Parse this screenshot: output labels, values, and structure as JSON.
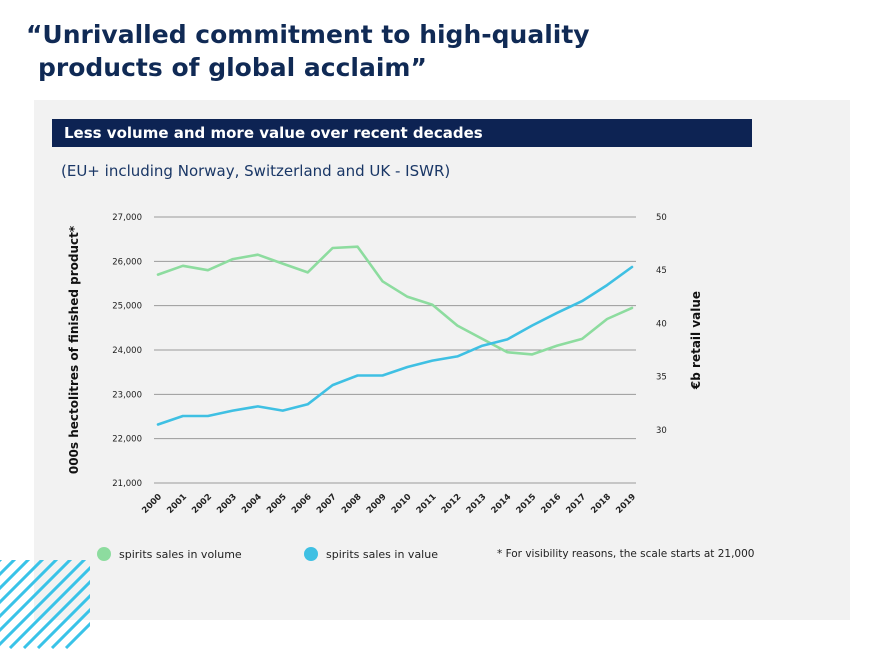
{
  "headline": {
    "line1": "“Unrivalled commitment to high-quality",
    "line2": "products of global acclaim”"
  },
  "banner_title": "Less volume and more value over recent decades",
  "subtitle": "(EU+ including Norway, Switzerland and UK - ISWR)",
  "footnote": "* For visibility reasons, the scale starts at 21,000",
  "colors": {
    "navy": "#0d2353",
    "volume": "#8ddc9f",
    "value": "#3fc0e3",
    "grid": "#9a9a9a",
    "decor": "#39c3e8"
  },
  "chart_data": {
    "type": "line",
    "x": [
      "2000",
      "2001",
      "2002",
      "2003",
      "2004",
      "2005",
      "2006",
      "2007",
      "2008",
      "2009",
      "2010",
      "2011",
      "2012",
      "2013",
      "2014",
      "2015",
      "2016",
      "2017",
      "2018",
      "2019"
    ],
    "series": [
      {
        "name": "spirits sales in volume",
        "axis": "left",
        "color": "#8ddc9f",
        "values": [
          25700,
          25900,
          25800,
          26050,
          26150,
          25950,
          25750,
          26300,
          26330,
          25550,
          25200,
          25020,
          24550,
          24250,
          23950,
          23900,
          24100,
          24250,
          24700,
          24950
        ]
      },
      {
        "name": "spirits sales in value",
        "axis": "right",
        "color": "#3fc0e3",
        "values": [
          30.5,
          31.3,
          31.3,
          31.8,
          32.2,
          31.8,
          32.4,
          34.2,
          35.1,
          35.1,
          35.9,
          36.5,
          36.9,
          37.9,
          38.5,
          39.8,
          41.0,
          42.1,
          43.6,
          45.3
        ]
      }
    ],
    "ylabel": "000s hectolitres of finished product*",
    "y2label": "€b retail value",
    "ylim": [
      21000,
      27000
    ],
    "y2lim": [
      25,
      50
    ],
    "yticks": [
      "21,000",
      "22,000",
      "23,000",
      "24,000",
      "25,000",
      "26,000",
      "27,000"
    ],
    "y2ticks": [
      "30",
      "35",
      "40",
      "45",
      "50"
    ],
    "legend_position": "bottom",
    "grid": true
  }
}
